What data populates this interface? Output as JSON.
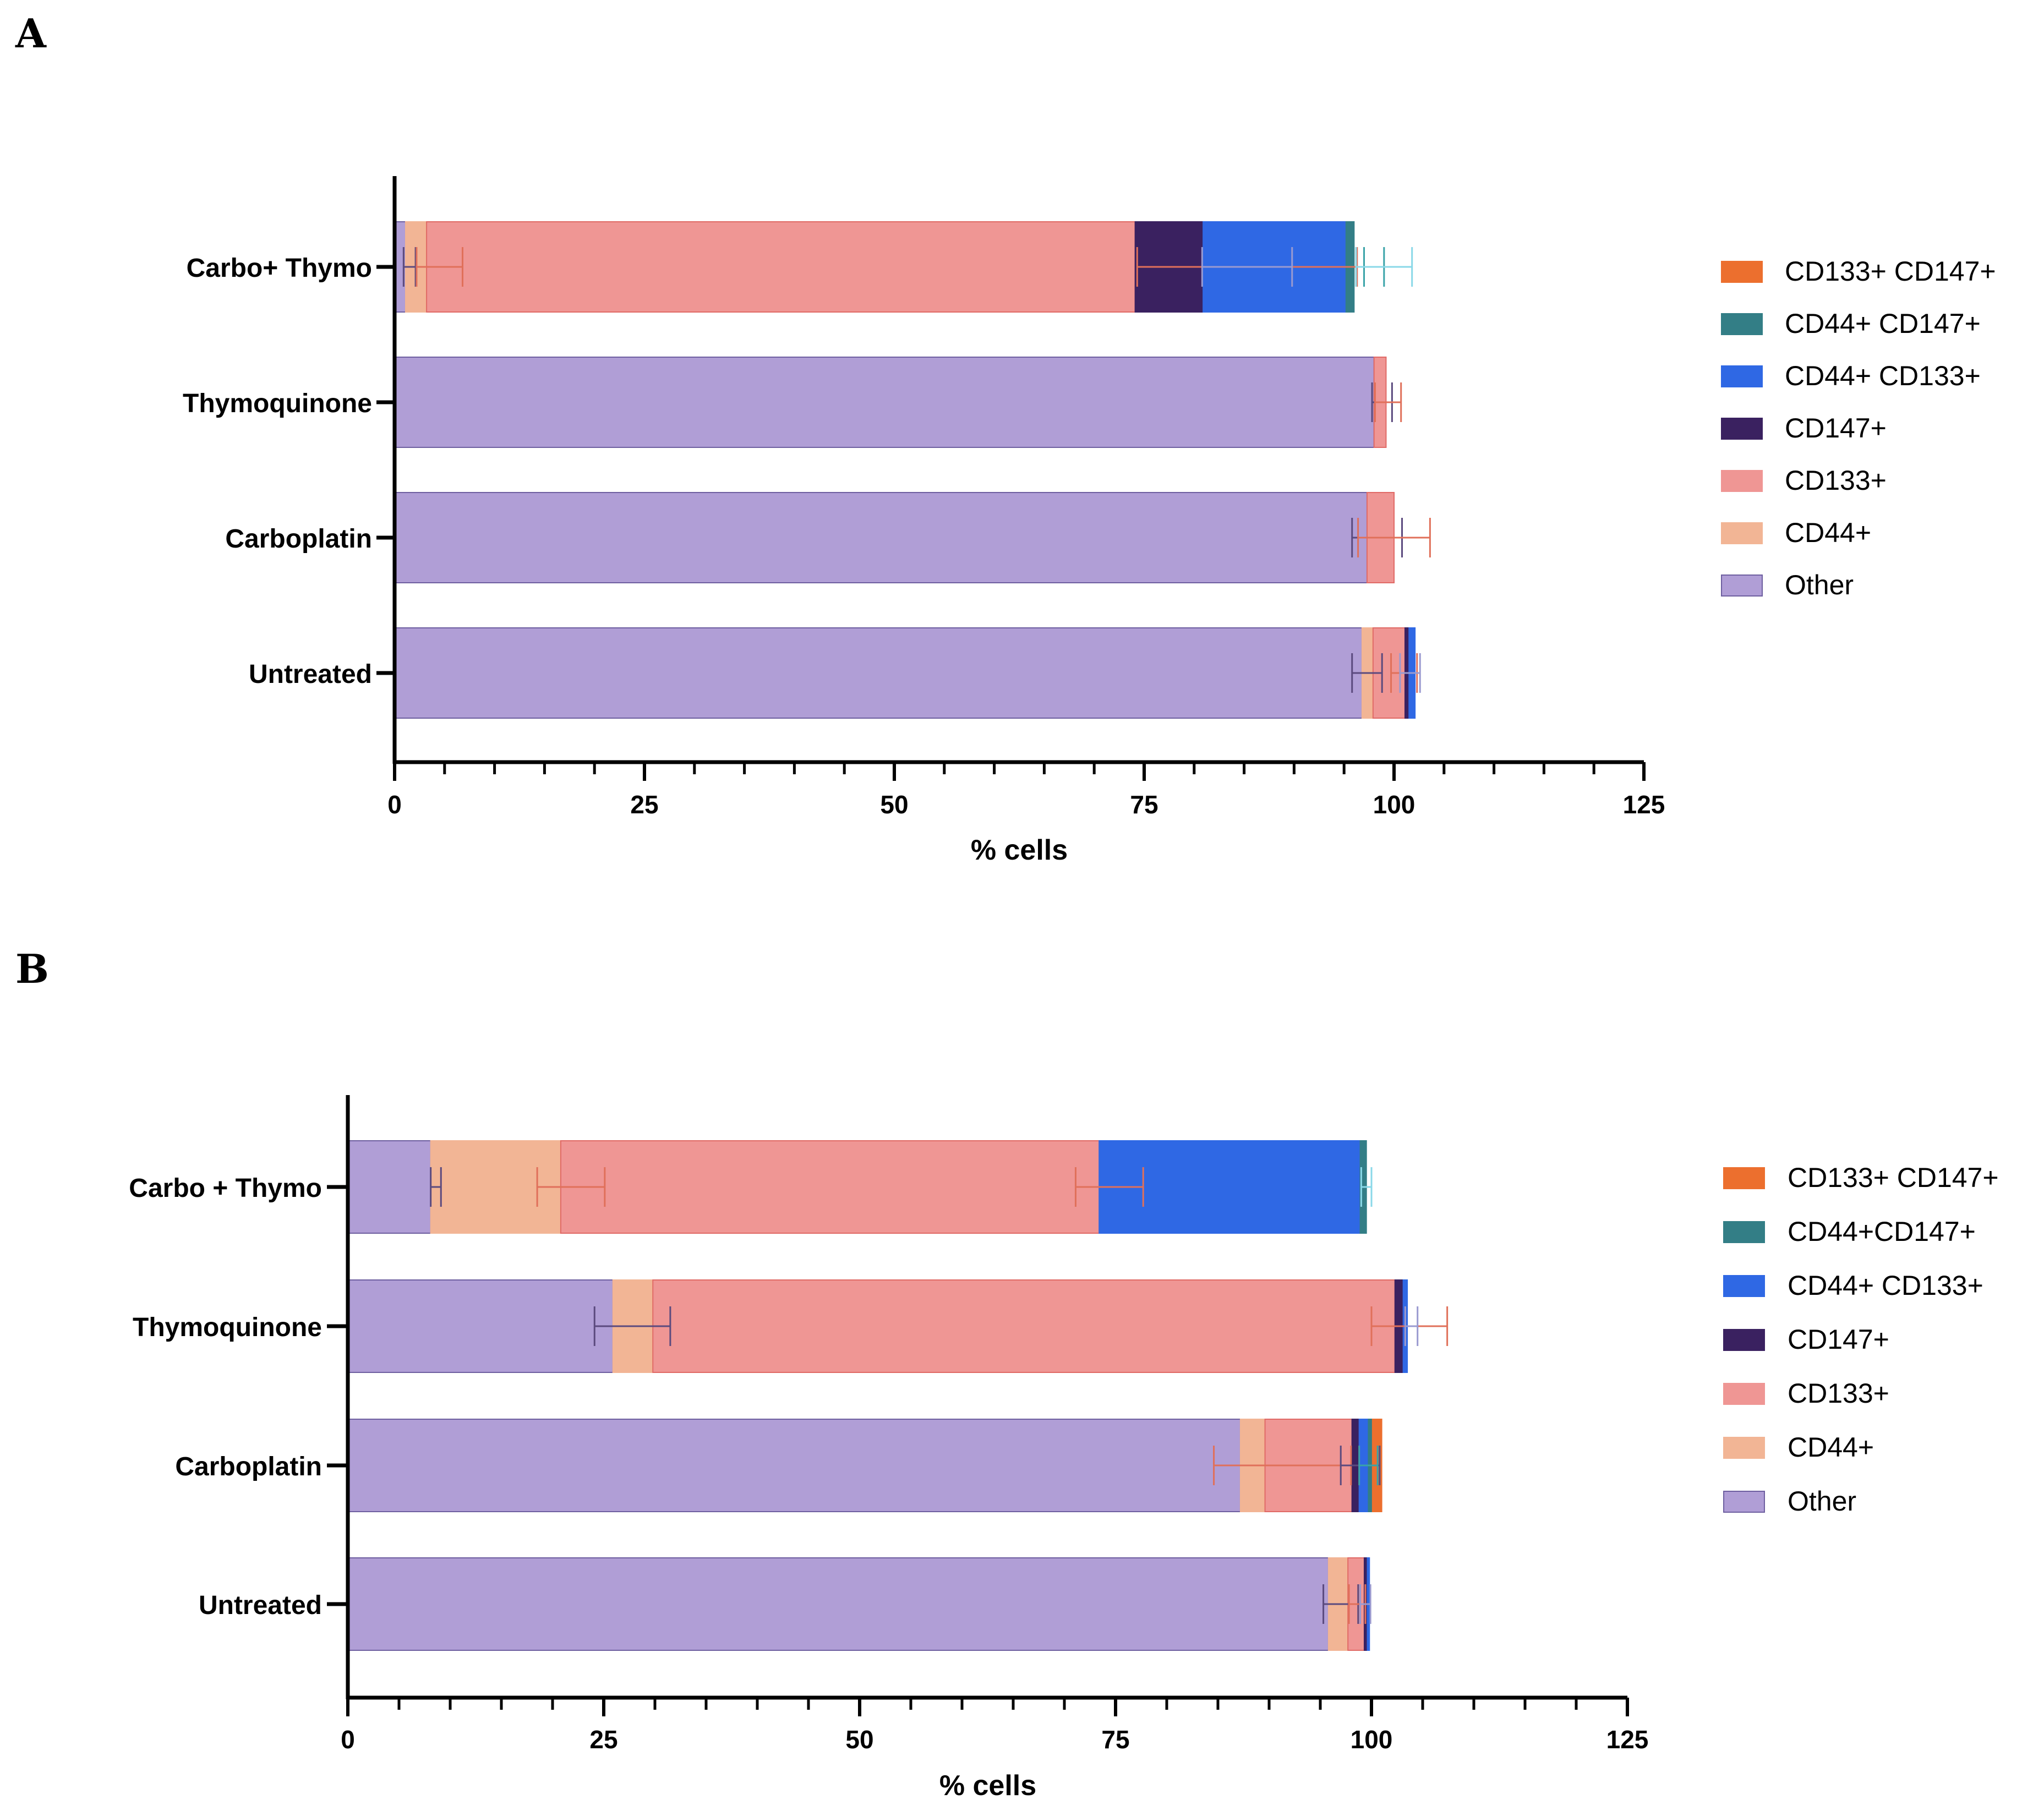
{
  "colors": {
    "Other": "#b09ed6",
    "CD44+": "#f2b595",
    "CD133+": "#ef9694",
    "CD147+": "#3a2160",
    "CD44+ CD133+": "#2f68e4",
    "CD44+ CD147+": "#337e86",
    "CD133+ CD147+": "#ec6f2e"
  },
  "chart_data": [
    {
      "panel": "A",
      "type": "bar",
      "orientation": "horizontal",
      "stacked": true,
      "xlabel": "% cells",
      "xlim": [
        0,
        125
      ],
      "xticks": [
        "0",
        "25",
        "50",
        "75",
        "100",
        "125"
      ],
      "categories": [
        "Carbo+ Thymo",
        "Thymoquinone",
        "Carboplatin",
        "Untreated"
      ],
      "legend": [
        "CD133+ CD147+",
        "CD44+ CD147+",
        "CD44+ CD133+",
        "CD147+",
        "CD133+",
        "CD44+",
        "Other"
      ],
      "series": [
        {
          "name": "Other",
          "values": [
            1.1,
            98.0,
            97.3,
            96.8
          ]
        },
        {
          "name": "CD44+",
          "values": [
            2.1,
            0,
            0,
            1.1
          ]
        },
        {
          "name": "CD133+",
          "values": [
            70.9,
            1.2,
            2.7,
            3.2
          ]
        },
        {
          "name": "CD147+",
          "values": [
            6.8,
            0,
            0,
            0.4
          ]
        },
        {
          "name": "CD44+ CD133+",
          "values": [
            14.3,
            0,
            0,
            0.6
          ]
        },
        {
          "name": "CD44+ CD147+",
          "values": [
            0.8,
            0,
            0,
            0
          ]
        },
        {
          "name": "CD133+ CD147+",
          "values": [
            0,
            0,
            0,
            0
          ]
        }
      ],
      "error_bars": [
        [
          {
            "at": 1.5,
            "hw": 0.6,
            "color": "#5b4a7e"
          },
          {
            "at": 4.5,
            "hw": 2.3,
            "color": "#e0705a"
          },
          {
            "at": 85.3,
            "hw": 11.0,
            "color": "#e0705a"
          },
          {
            "at": 85.3,
            "hw": 4.5,
            "color": "#9a9ad0"
          },
          {
            "at": 98.0,
            "hw": 1.0,
            "color": "#3aa3a8"
          },
          {
            "at": 99.0,
            "hw": 2.8,
            "color": "#8ad8e8"
          }
        ],
        [
          {
            "at": 98.8,
            "hw": 1.0,
            "color": "#5b4a7e"
          },
          {
            "at": 99.4,
            "hw": 1.3,
            "color": "#e0705a"
          }
        ],
        [
          {
            "at": 98.3,
            "hw": 2.5,
            "color": "#5b4a7e"
          },
          {
            "at": 100.0,
            "hw": 3.6,
            "color": "#e0705a"
          }
        ],
        [
          {
            "at": 97.3,
            "hw": 1.5,
            "color": "#5b4a7e"
          },
          {
            "at": 101.0,
            "hw": 1.3,
            "color": "#e0705a"
          },
          {
            "at": 101.6,
            "hw": 1.0,
            "color": "#9a9ad0"
          }
        ]
      ]
    },
    {
      "panel": "B",
      "type": "bar",
      "orientation": "horizontal",
      "stacked": true,
      "xlabel": "% cells",
      "xlim": [
        0,
        125
      ],
      "xticks": [
        "0",
        "25",
        "50",
        "75",
        "100",
        "125"
      ],
      "categories": [
        "Carbo + Thymo",
        "Thymoquinone",
        "Carboplatin",
        "Untreated"
      ],
      "legend": [
        "CD133+ CD147+",
        "CD44+CD147+",
        "CD44+ CD133+",
        "CD147+",
        "CD133+",
        "CD44+",
        "Other"
      ],
      "series": [
        {
          "name": "Other",
          "values": [
            8.1,
            25.9,
            87.2,
            95.8
          ]
        },
        {
          "name": "CD44+",
          "values": [
            12.7,
            3.9,
            2.4,
            1.9
          ]
        },
        {
          "name": "CD133+",
          "values": [
            52.6,
            72.5,
            8.5,
            1.6
          ]
        },
        {
          "name": "CD147+",
          "values": [
            0,
            0.8,
            0.7,
            0.3
          ]
        },
        {
          "name": "CD44+ CD133+",
          "values": [
            25.5,
            0.4,
            0.9,
            0.2
          ]
        },
        {
          "name": "CD44+ CD147+",
          "values": [
            0.6,
            0,
            0.4,
            0
          ]
        },
        {
          "name": "CD133+ CD147+",
          "values": [
            0,
            0,
            0.9,
            0
          ]
        }
      ],
      "error_bars": [
        [
          {
            "at": 8.6,
            "hw": 0.5,
            "color": "#5b4a7e"
          },
          {
            "at": 21.8,
            "hw": 3.3,
            "color": "#e0705a"
          },
          {
            "at": 74.4,
            "hw": 3.3,
            "color": "#e0705a"
          },
          {
            "at": 99.5,
            "hw": 0.5,
            "color": "#8ad8e8"
          }
        ],
        [
          {
            "at": 27.8,
            "hw": 3.7,
            "color": "#5b4a7e"
          },
          {
            "at": 103.7,
            "hw": 3.7,
            "color": "#e0705a"
          },
          {
            "at": 103.9,
            "hw": 0.6,
            "color": "#9a9ad0"
          }
        ],
        [
          {
            "at": 91.3,
            "hw": 6.7,
            "color": "#e0705a"
          },
          {
            "at": 98.9,
            "hw": 1.9,
            "color": "#5b4a7e"
          },
          {
            "at": 99.7,
            "hw": 0.9,
            "color": "#3aa3a8"
          }
        ],
        [
          {
            "at": 97.0,
            "hw": 1.7,
            "color": "#5b4a7e"
          },
          {
            "at": 98.6,
            "hw": 0.8,
            "color": "#e0705a"
          },
          {
            "at": 99.4,
            "hw": 0.5,
            "color": "#9a9ad0"
          }
        ]
      ]
    }
  ]
}
